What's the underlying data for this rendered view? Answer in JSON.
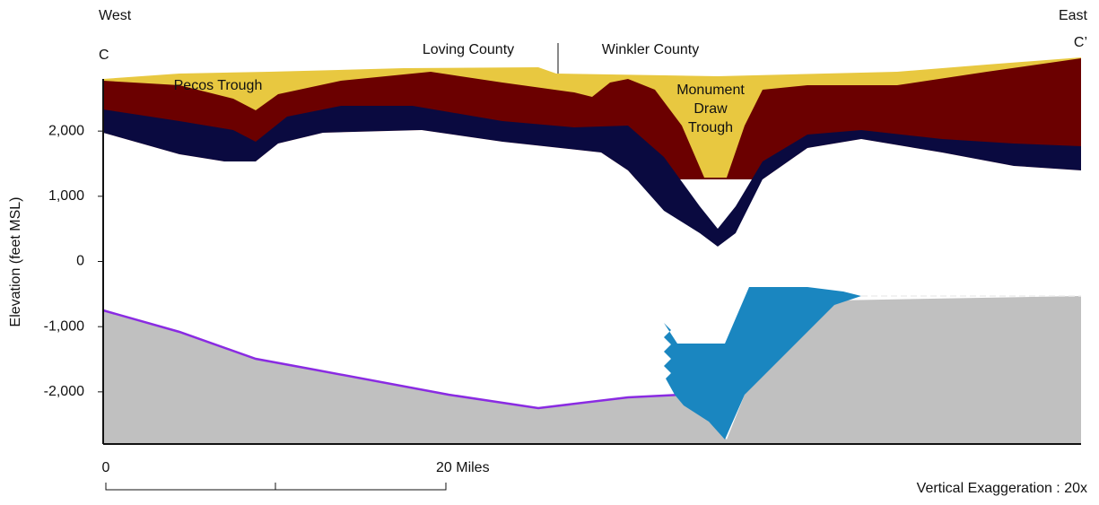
{
  "labels": {
    "west": "West",
    "east": "East",
    "c": "C",
    "c_prime": "C’",
    "loving": "Loving County",
    "winkler": "Winkler County",
    "pecos": "Pecos Trough",
    "monument": [
      "Monument",
      "Draw",
      "Trough"
    ]
  },
  "axis": {
    "label": "Elevation (feet MSL)",
    "ylim": [
      -2800,
      2800
    ],
    "yticks": [
      {
        "value": 2000,
        "label": "2,000"
      },
      {
        "value": 1000,
        "label": "1,000"
      },
      0,
      {
        "value": -1000,
        "label": "-1,000"
      },
      {
        "value": -2000,
        "label": "-2,000"
      }
    ]
  },
  "scale_bar": {
    "start": "0",
    "end": "20 Miles"
  },
  "note": "Vertical Exaggeration : 20x"
}
